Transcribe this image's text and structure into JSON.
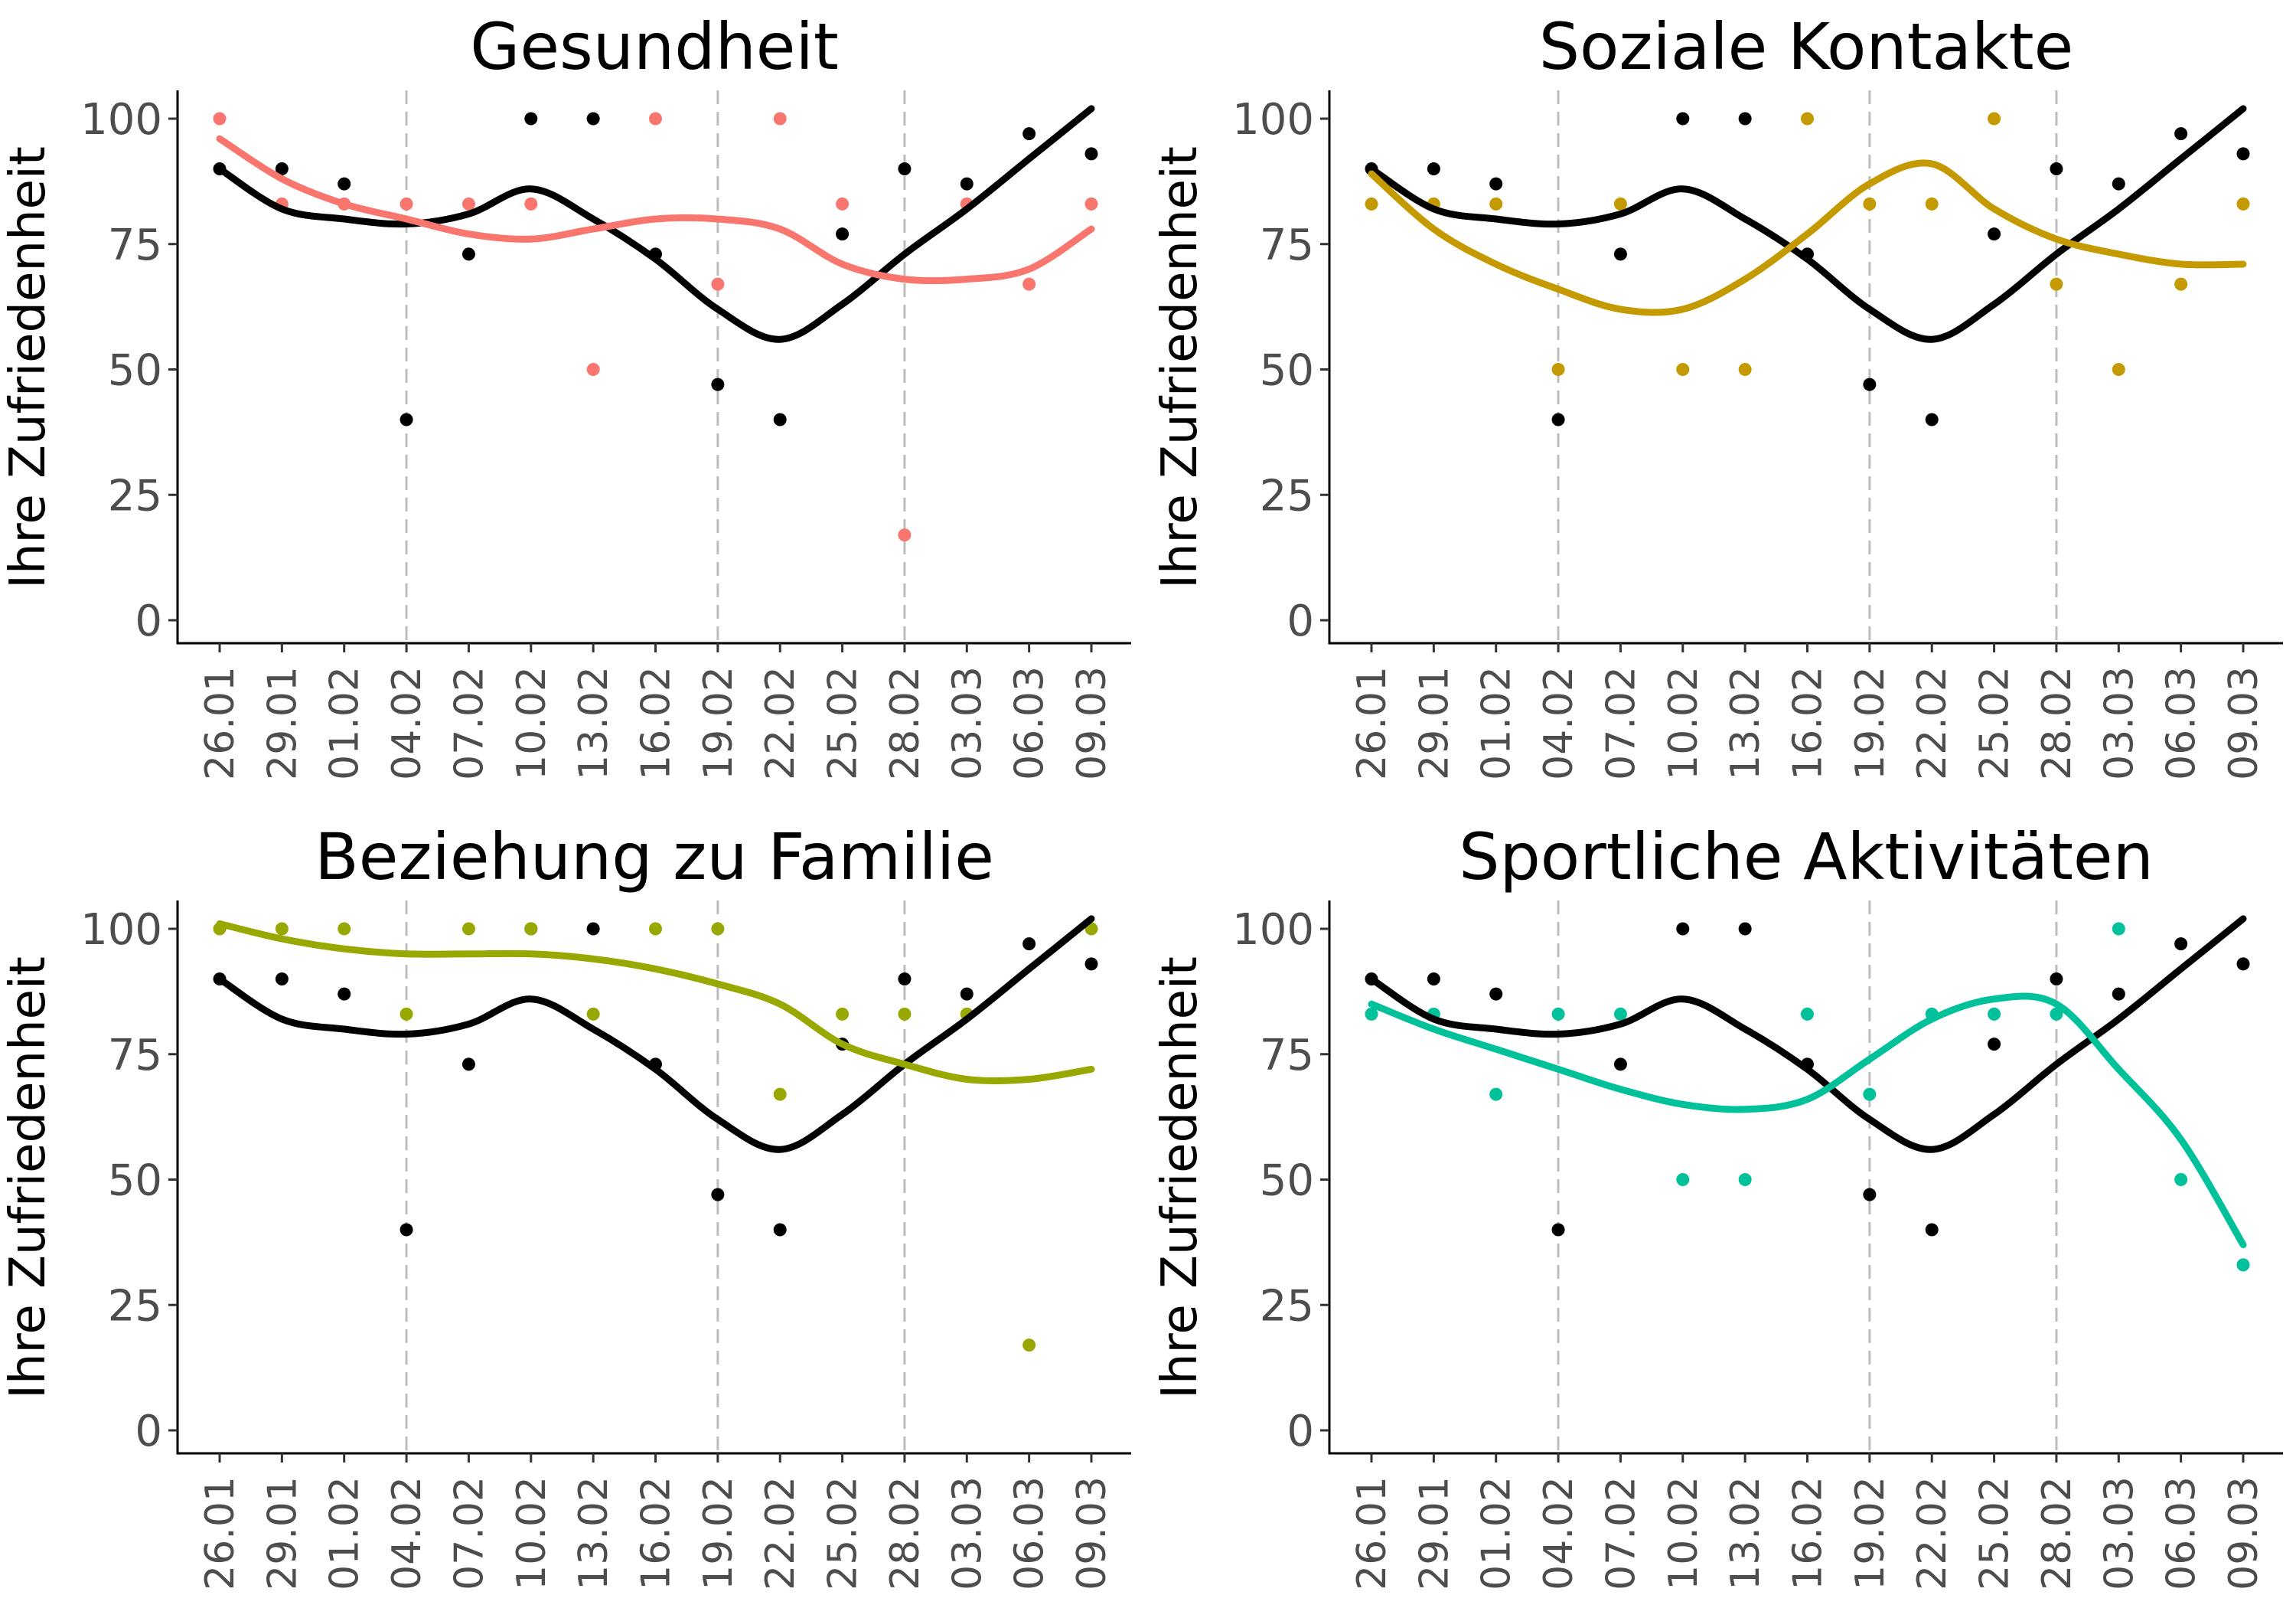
{
  "figure": {
    "reference_color": "#000000",
    "vline_color": "#bdbdbd"
  },
  "chart_data": [
    {
      "type": "scatter",
      "title": "Gesundheit",
      "ylabel": "Ihre Zufriedenheit",
      "xlabel": "",
      "ylim": [
        0,
        100
      ],
      "yticks": [
        0,
        25,
        50,
        75,
        100
      ],
      "x": [
        "26.01",
        "29.01",
        "01.02",
        "04.02",
        "07.02",
        "10.02",
        "13.02",
        "16.02",
        "19.02",
        "22.02",
        "25.02",
        "28.02",
        "03.03",
        "06.03",
        "09.03"
      ],
      "vlines": [
        "04.02",
        "19.02",
        "28.02"
      ],
      "grid": false,
      "legend": "none",
      "series": [
        {
          "color": "#000000",
          "values": [
            90,
            90,
            87,
            40,
            73,
            100,
            100,
            73,
            47,
            40,
            77,
            90,
            87,
            97,
            93
          ],
          "smooth": [
            90,
            82,
            80,
            79,
            81,
            86,
            80,
            72,
            62,
            56,
            63,
            73,
            82,
            92,
            102
          ]
        },
        {
          "color": "#f8766d",
          "values": [
            100,
            83,
            83,
            83,
            83,
            83,
            50,
            100,
            67,
            100,
            83,
            17,
            83,
            67,
            83
          ],
          "smooth": [
            96,
            88,
            83,
            80,
            77,
            76,
            78,
            80,
            80,
            78,
            71,
            68,
            68,
            70,
            78
          ]
        }
      ]
    },
    {
      "type": "scatter",
      "title": "Soziale Kontakte",
      "ylabel": "Ihre Zufriedenheit",
      "xlabel": "",
      "ylim": [
        0,
        100
      ],
      "yticks": [
        0,
        25,
        50,
        75,
        100
      ],
      "x": [
        "26.01",
        "29.01",
        "01.02",
        "04.02",
        "07.02",
        "10.02",
        "13.02",
        "16.02",
        "19.02",
        "22.02",
        "25.02",
        "28.02",
        "03.03",
        "06.03",
        "09.03"
      ],
      "vlines": [
        "04.02",
        "19.02",
        "28.02"
      ],
      "grid": false,
      "legend": "none",
      "series": [
        {
          "color": "#000000",
          "values": [
            90,
            90,
            87,
            40,
            73,
            100,
            100,
            73,
            47,
            40,
            77,
            90,
            87,
            97,
            93
          ],
          "smooth": [
            90,
            82,
            80,
            79,
            81,
            86,
            80,
            72,
            62,
            56,
            63,
            73,
            82,
            92,
            102
          ]
        },
        {
          "color": "#c49a00",
          "values": [
            83,
            83,
            83,
            50,
            83,
            50,
            50,
            100,
            83,
            83,
            100,
            67,
            50,
            67,
            83
          ],
          "smooth": [
            89,
            78,
            71,
            66,
            62,
            62,
            68,
            77,
            87,
            91,
            82,
            76,
            73,
            71,
            71
          ]
        }
      ]
    },
    {
      "type": "scatter",
      "title": "Beziehung zu Familie",
      "ylabel": "Ihre Zufriedenheit",
      "xlabel": "",
      "ylim": [
        0,
        100
      ],
      "yticks": [
        0,
        25,
        50,
        75,
        100
      ],
      "x": [
        "26.01",
        "29.01",
        "01.02",
        "04.02",
        "07.02",
        "10.02",
        "13.02",
        "16.02",
        "19.02",
        "22.02",
        "25.02",
        "28.02",
        "03.03",
        "06.03",
        "09.03"
      ],
      "vlines": [
        "04.02",
        "19.02",
        "28.02"
      ],
      "grid": false,
      "legend": "none",
      "series": [
        {
          "color": "#000000",
          "values": [
            90,
            90,
            87,
            40,
            73,
            100,
            100,
            73,
            47,
            40,
            77,
            90,
            87,
            97,
            93
          ],
          "smooth": [
            90,
            82,
            80,
            79,
            81,
            86,
            80,
            72,
            62,
            56,
            63,
            73,
            82,
            92,
            102
          ]
        },
        {
          "color": "#99a800",
          "values": [
            100,
            100,
            100,
            83,
            100,
            100,
            83,
            100,
            100,
            67,
            83,
            83,
            83,
            17,
            100
          ],
          "smooth": [
            101,
            98,
            96,
            95,
            95,
            95,
            94,
            92,
            89,
            85,
            77,
            73,
            70,
            70,
            72
          ]
        }
      ]
    },
    {
      "type": "scatter",
      "title": "Sportliche Aktivitäten",
      "ylabel": "Ihre Zufriedenheit",
      "xlabel": "",
      "ylim": [
        0,
        100
      ],
      "yticks": [
        0,
        25,
        50,
        75,
        100
      ],
      "x": [
        "26.01",
        "29.01",
        "01.02",
        "04.02",
        "07.02",
        "10.02",
        "13.02",
        "16.02",
        "19.02",
        "22.02",
        "25.02",
        "28.02",
        "03.03",
        "06.03",
        "09.03"
      ],
      "vlines": [
        "04.02",
        "19.02",
        "28.02"
      ],
      "grid": false,
      "legend": "none",
      "series": [
        {
          "color": "#000000",
          "values": [
            90,
            90,
            87,
            40,
            73,
            100,
            100,
            73,
            47,
            40,
            77,
            90,
            87,
            97,
            93
          ],
          "smooth": [
            90,
            82,
            80,
            79,
            81,
            86,
            80,
            72,
            62,
            56,
            63,
            73,
            82,
            92,
            102
          ]
        },
        {
          "color": "#00c19a",
          "values": [
            83,
            83,
            67,
            83,
            83,
            50,
            50,
            83,
            67,
            83,
            83,
            83,
            100,
            50,
            33
          ],
          "smooth": [
            85,
            80,
            76,
            72,
            68,
            65,
            64,
            66,
            74,
            82,
            86,
            85,
            72,
            58,
            37
          ]
        }
      ]
    }
  ]
}
